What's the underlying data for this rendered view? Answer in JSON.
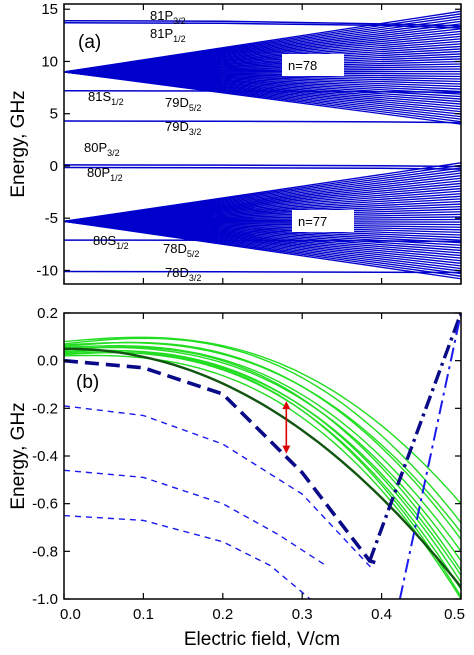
{
  "chart_data": [
    {
      "type": "line",
      "panel_label": "(a)",
      "ylabel": "Energy, GHz",
      "xlabel": "",
      "xlim": [
        0,
        0.5
      ],
      "ylim": [
        -11.3,
        15.5
      ],
      "yticks": [
        -10,
        -5,
        0,
        5,
        10,
        15
      ],
      "ytick_labels": [
        "-10",
        "-5",
        "0",
        "5",
        "10",
        "15"
      ],
      "xticks_shown": false,
      "grid": false,
      "manifolds": [
        {
          "label": "n=78",
          "center_energy": 9.0,
          "spread_at_max_field": [
            4.0,
            14.8
          ],
          "color": "#0000cc"
        },
        {
          "label": "n=77",
          "center_energy": -5.3,
          "spread_at_max_field": [
            -10.8,
            0.3
          ],
          "color": "#0000cc"
        }
      ],
      "series": [
        {
          "points": [
            [
              0,
              13.9
            ],
            [
              0.2,
              13.85
            ],
            [
              0.4,
              13.6
            ],
            [
              0.5,
              13.4
            ]
          ],
          "color": "#0000cc"
        },
        {
          "points": [
            [
              0,
              13.7
            ],
            [
              0.2,
              13.65
            ],
            [
              0.4,
              13.45
            ],
            [
              0.5,
              13.2
            ]
          ],
          "color": "#0000cc"
        },
        {
          "points": [
            [
              0,
              7.2
            ],
            [
              0.2,
              7.17
            ],
            [
              0.4,
              7.1
            ],
            [
              0.5,
              7.05
            ]
          ],
          "color": "#0000cc"
        },
        {
          "points": [
            [
              0,
              4.3
            ],
            [
              0.2,
              4.28
            ],
            [
              0.4,
              4.22
            ],
            [
              0.5,
              4.15
            ]
          ],
          "color": "#0000cc"
        },
        {
          "points": [
            [
              0,
              0.1
            ],
            [
              0.2,
              0.08
            ],
            [
              0.4,
              0.02
            ],
            [
              0.5,
              -0.05
            ]
          ],
          "color": "#0000cc"
        },
        {
          "points": [
            [
              0,
              -0.15
            ],
            [
              0.2,
              -0.17
            ],
            [
              0.4,
              -0.23
            ],
            [
              0.5,
              -0.3
            ]
          ],
          "color": "#0000cc"
        },
        {
          "points": [
            [
              0,
              -7.1
            ],
            [
              0.2,
              -7.12
            ],
            [
              0.4,
              -7.18
            ],
            [
              0.5,
              -7.22
            ]
          ],
          "color": "#0000cc"
        },
        {
          "points": [
            [
              0,
              -10.1
            ],
            [
              0.2,
              -10.12
            ],
            [
              0.4,
              -10.18
            ],
            [
              0.5,
              -10.2
            ]
          ],
          "color": "#0000cc"
        }
      ],
      "annotations": [
        {
          "main": "81P",
          "sub": "3/2"
        },
        {
          "main": "81P",
          "sub": "1/2"
        },
        {
          "main": "81S",
          "sub": "1/2"
        },
        {
          "main": "79D",
          "sub": "5/2"
        },
        {
          "main": "79D",
          "sub": "3/2"
        },
        {
          "main": "80P",
          "sub": "3/2"
        },
        {
          "main": "80P",
          "sub": "1/2"
        },
        {
          "main": "80S",
          "sub": "1/2"
        },
        {
          "main": "78D",
          "sub": "5/2"
        },
        {
          "main": "78D",
          "sub": "3/2"
        }
      ]
    },
    {
      "type": "line",
      "panel_label": "(b)",
      "xlabel": "Electric field, V/cm",
      "ylabel": "Energy, GHz",
      "xlim": [
        0,
        0.5
      ],
      "ylim": [
        -1.0,
        0.2
      ],
      "xticks": [
        0.0,
        0.1,
        0.2,
        0.3,
        0.4,
        0.5
      ],
      "xtick_labels": [
        "0.0",
        "0.1",
        "0.2",
        "0.3",
        "0.4",
        "0.5"
      ],
      "yticks": [
        -1.0,
        -0.8,
        -0.6,
        -0.4,
        -0.2,
        0.0,
        0.2
      ],
      "ytick_labels": [
        "-1.0",
        "-0.8",
        "-0.6",
        "-0.4",
        "-0.2",
        "0.0",
        "0.2"
      ],
      "grid": false,
      "green_curves": [
        {
          "y0": 0.08,
          "y_end": -0.6,
          "dip_at_max": 0.08
        },
        {
          "y0": 0.07,
          "y_end": -0.68,
          "dip_at_max": 0.1
        },
        {
          "y0": 0.065,
          "y_end": -0.72,
          "dip_at_max": 0.06
        },
        {
          "y0": 0.06,
          "y_end": -0.75,
          "dip_at_max": 0.08
        },
        {
          "y0": 0.055,
          "y_end": -0.8,
          "dip_at_max": 0.05
        },
        {
          "y0": 0.05,
          "y_end": -0.84,
          "dip_at_max": 0.04
        },
        {
          "y0": 0.045,
          "y_end": -0.88,
          "dip_at_max": 0.07
        },
        {
          "y0": 0.04,
          "y_end": -0.9,
          "dip_at_max": 0.03
        },
        {
          "y0": 0.035,
          "y_end": -0.93,
          "dip_at_max": 0.05
        },
        {
          "y0": 0.03,
          "y_end": -0.96,
          "dip_at_max": 0.04
        },
        {
          "y0": 0.025,
          "y_end": -0.99,
          "dip_at_max": 0.06
        },
        {
          "y0": 0.02,
          "y_end": -1.0,
          "dip_at_max": 0.02
        }
      ],
      "dark_green_curve": {
        "y0": 0.05,
        "y_end": -0.95
      },
      "blue_dashed_curves": [
        {
          "points": [
            [
              0,
              -0.19
            ],
            [
              0.1,
              -0.23
            ],
            [
              0.2,
              -0.35
            ],
            [
              0.3,
              -0.56
            ],
            [
              0.39,
              -0.88
            ]
          ]
        },
        {
          "points": [
            [
              0,
              -0.46
            ],
            [
              0.1,
              -0.49
            ],
            [
              0.2,
              -0.6
            ],
            [
              0.27,
              -0.73
            ],
            [
              0.33,
              -0.86
            ]
          ]
        },
        {
          "points": [
            [
              0,
              -0.65
            ],
            [
              0.1,
              -0.67
            ],
            [
              0.2,
              -0.76
            ],
            [
              0.26,
              -0.86
            ],
            [
              0.31,
              -1.0
            ]
          ]
        }
      ],
      "blue_thick_dash_curve": {
        "points": [
          [
            0,
            0.0
          ],
          [
            0.1,
            -0.03
          ],
          [
            0.2,
            -0.14
          ],
          [
            0.3,
            -0.47
          ],
          [
            0.385,
            -0.84
          ],
          [
            0.4,
            -0.855
          ]
        ]
      },
      "blue_dashdot_lines": [
        {
          "points": [
            [
              0.385,
              -0.84
            ],
            [
              0.5,
              0.2
            ]
          ]
        },
        {
          "points": [
            [
              0.423,
              -1.0
            ],
            [
              0.5,
              0.2
            ]
          ]
        }
      ],
      "arrow": {
        "x": 0.28,
        "y_top": -0.17,
        "y_bottom": -0.39,
        "color": "#dd0000",
        "double_headed": true
      }
    }
  ]
}
